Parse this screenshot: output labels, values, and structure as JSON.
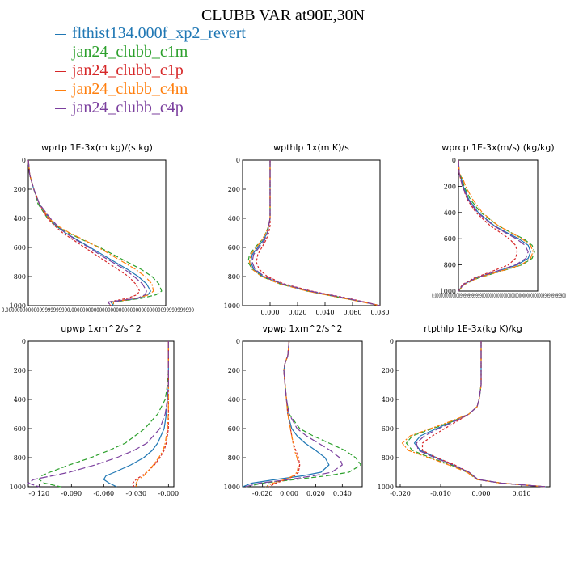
{
  "title": "CLUBB VAR at90E,30N",
  "legend": [
    {
      "name": "flthist134.000f_xp2_revert",
      "color": "#1f77b4",
      "dash": ""
    },
    {
      "name": "jan24_clubb_c1m",
      "color": "#2ca02c",
      "dash": "6,3"
    },
    {
      "name": "jan24_clubb_c1p",
      "color": "#d62728",
      "dash": "3,2"
    },
    {
      "name": "jan24_clubb_c4m",
      "color": "#ff7f0e",
      "dash": "7,2,2,2"
    },
    {
      "name": "jan24_clubb_c4p",
      "color": "#7b3f9e",
      "dash": "9,3"
    }
  ],
  "chart_data": [
    {
      "type": "line",
      "title": "wprtp  1E-3x(m kg)/(s kg)",
      "xlim": [
        0,
        1
      ],
      "ylim": [
        0,
        1000
      ],
      "y_reversed": true,
      "yticks": [
        0,
        200,
        400,
        600,
        800,
        1000
      ],
      "xticks": [],
      "xtick_text": "0.00000000000099999999990.00000000000000000000000000000000099999999990",
      "y": [
        0,
        100,
        200,
        300,
        400,
        450,
        500,
        550,
        600,
        650,
        700,
        750,
        800,
        850,
        900,
        925,
        950,
        975,
        1000
      ],
      "series": [
        {
          "x": [
            0,
            0.01,
            0.04,
            0.08,
            0.15,
            0.2,
            0.27,
            0.36,
            0.45,
            0.54,
            0.63,
            0.72,
            0.8,
            0.86,
            0.89,
            0.87,
            0.8,
            0.6,
            0.62
          ]
        },
        {
          "x": [
            0,
            0.01,
            0.04,
            0.07,
            0.14,
            0.2,
            0.29,
            0.4,
            0.52,
            0.62,
            0.72,
            0.82,
            0.9,
            0.95,
            0.97,
            0.93,
            0.82,
            0.62,
            0.62
          ]
        },
        {
          "x": [
            0,
            0.01,
            0.04,
            0.08,
            0.14,
            0.19,
            0.25,
            0.33,
            0.41,
            0.49,
            0.57,
            0.65,
            0.73,
            0.78,
            0.81,
            0.79,
            0.72,
            0.58,
            0.6
          ]
        },
        {
          "x": [
            0,
            0.01,
            0.04,
            0.08,
            0.15,
            0.21,
            0.3,
            0.41,
            0.51,
            0.6,
            0.69,
            0.78,
            0.85,
            0.9,
            0.91,
            0.88,
            0.78,
            0.62,
            0.62
          ]
        },
        {
          "x": [
            0,
            0.01,
            0.04,
            0.08,
            0.16,
            0.21,
            0.27,
            0.35,
            0.44,
            0.52,
            0.61,
            0.7,
            0.77,
            0.83,
            0.86,
            0.85,
            0.79,
            0.58,
            0.6
          ]
        }
      ]
    },
    {
      "type": "line",
      "title": "wpthlp  1x(m K)/s",
      "xlim": [
        -0.02,
        0.08
      ],
      "ylim": [
        0,
        1000
      ],
      "y_reversed": true,
      "yticks": [
        0,
        200,
        400,
        600,
        800,
        1000
      ],
      "xticks": [
        0.0,
        0.02,
        0.04,
        0.06,
        0.08
      ],
      "xticklabels": [
        "0.000",
        "0.020",
        "0.040",
        "0.060",
        "0.080"
      ],
      "y": [
        0,
        100,
        200,
        300,
        400,
        450,
        500,
        550,
        600,
        650,
        700,
        750,
        800,
        850,
        900,
        950,
        975,
        1000
      ],
      "series": [
        {
          "x": [
            0,
            0,
            0,
            0,
            0,
            -0.001,
            -0.002,
            -0.005,
            -0.009,
            -0.013,
            -0.014,
            -0.012,
            -0.005,
            0.008,
            0.028,
            0.055,
            0.068,
            0.08
          ]
        },
        {
          "x": [
            0,
            0,
            0,
            0,
            0,
            -0.001,
            -0.003,
            -0.006,
            -0.011,
            -0.015,
            -0.016,
            -0.013,
            -0.006,
            0.007,
            0.027,
            0.054,
            0.068,
            0.08
          ]
        },
        {
          "x": [
            0,
            0,
            0,
            0,
            0,
            0,
            -0.001,
            -0.003,
            -0.006,
            -0.009,
            -0.01,
            -0.008,
            -0.002,
            0.01,
            0.03,
            0.057,
            0.069,
            0.08
          ]
        },
        {
          "x": [
            0,
            0,
            0,
            0,
            0,
            -0.001,
            -0.003,
            -0.006,
            -0.01,
            -0.014,
            -0.015,
            -0.013,
            -0.006,
            0.007,
            0.027,
            0.054,
            0.067,
            0.08
          ]
        },
        {
          "x": [
            0,
            0,
            0,
            0,
            0,
            -0.001,
            -0.002,
            -0.004,
            -0.008,
            -0.012,
            -0.013,
            -0.011,
            -0.004,
            0.009,
            0.029,
            0.056,
            0.068,
            0.08
          ]
        }
      ]
    },
    {
      "type": "line",
      "title": "wprcp  1E-3x(m/s) (kg/kg)",
      "xlim": [
        0,
        1
      ],
      "ylim": [
        0,
        1000
      ],
      "y_reversed": true,
      "yticks": [
        0,
        200,
        400,
        600,
        800,
        1000
      ],
      "xticks": [],
      "xtick_text": "0.0000000000000999999999990000000000000000000000000000000999999999900",
      "y": [
        0,
        100,
        150,
        200,
        300,
        400,
        500,
        550,
        600,
        650,
        700,
        750,
        800,
        850,
        900,
        950,
        1000
      ],
      "series": [
        {
          "x": [
            0,
            0.01,
            0.04,
            0.06,
            0.13,
            0.25,
            0.45,
            0.6,
            0.76,
            0.88,
            0.91,
            0.88,
            0.74,
            0.48,
            0.22,
            0.06,
            0
          ]
        },
        {
          "x": [
            0,
            0.01,
            0.05,
            0.07,
            0.15,
            0.28,
            0.5,
            0.65,
            0.82,
            0.93,
            0.96,
            0.93,
            0.8,
            0.53,
            0.25,
            0.07,
            0
          ]
        },
        {
          "x": [
            0,
            0.01,
            0.03,
            0.05,
            0.11,
            0.22,
            0.4,
            0.52,
            0.64,
            0.72,
            0.74,
            0.72,
            0.63,
            0.42,
            0.2,
            0.05,
            0
          ]
        },
        {
          "x": [
            0,
            0.01,
            0.06,
            0.09,
            0.18,
            0.3,
            0.5,
            0.65,
            0.8,
            0.91,
            0.94,
            0.91,
            0.79,
            0.52,
            0.24,
            0.07,
            0
          ]
        },
        {
          "x": [
            0,
            0.01,
            0.03,
            0.05,
            0.12,
            0.24,
            0.44,
            0.58,
            0.73,
            0.84,
            0.88,
            0.85,
            0.72,
            0.47,
            0.22,
            0.06,
            0
          ]
        }
      ]
    },
    {
      "type": "line",
      "title": "upwp  1xm^2/s^2",
      "xlim": [
        -0.13,
        0.005
      ],
      "ylim": [
        0,
        1000
      ],
      "y_reversed": true,
      "yticks": [
        0,
        200,
        400,
        600,
        800,
        1000
      ],
      "xticks": [
        -0.12,
        -0.09,
        -0.06,
        -0.03,
        0.0
      ],
      "xticklabels": [
        "-0.120",
        "-0.090",
        "-0.060",
        "-0.030",
        "-0.000"
      ],
      "y": [
        0,
        200,
        300,
        400,
        500,
        600,
        700,
        750,
        800,
        850,
        900,
        925,
        950,
        975,
        1000
      ],
      "series": [
        {
          "x": [
            0,
            0,
            0,
            -0.001,
            -0.002,
            -0.004,
            -0.01,
            -0.015,
            -0.023,
            -0.035,
            -0.05,
            -0.058,
            -0.06,
            -0.055,
            -0.048
          ]
        },
        {
          "x": [
            0,
            0,
            -0.001,
            -0.003,
            -0.01,
            -0.022,
            -0.04,
            -0.055,
            -0.072,
            -0.092,
            -0.11,
            -0.118,
            -0.12,
            -0.115,
            -0.1
          ]
        },
        {
          "x": [
            0,
            0,
            0,
            0,
            0,
            0,
            -0.002,
            -0.004,
            -0.008,
            -0.013,
            -0.02,
            -0.025,
            -0.03,
            -0.033,
            -0.032
          ]
        },
        {
          "x": [
            0,
            0,
            0,
            0,
            0,
            -0.001,
            -0.003,
            -0.005,
            -0.009,
            -0.014,
            -0.02,
            -0.023,
            -0.028,
            -0.03,
            -0.03
          ]
        },
        {
          "x": [
            0,
            0,
            0,
            -0.001,
            -0.003,
            -0.008,
            -0.02,
            -0.032,
            -0.048,
            -0.068,
            -0.092,
            -0.108,
            -0.125,
            -0.13,
            -0.12
          ]
        }
      ]
    },
    {
      "type": "line",
      "title": "vpwp  1xm^2/s^2",
      "xlim": [
        -0.035,
        0.055
      ],
      "ylim": [
        0,
        1000
      ],
      "y_reversed": true,
      "yticks": [
        0,
        200,
        400,
        600,
        800,
        1000
      ],
      "xticks": [
        -0.02,
        0.0,
        0.02,
        0.04
      ],
      "xticklabels": [
        "-0.020",
        "0.000",
        "0.020",
        "0.040"
      ],
      "y": [
        0,
        100,
        150,
        200,
        300,
        400,
        500,
        600,
        650,
        700,
        750,
        800,
        850,
        900,
        925,
        950,
        975,
        1000
      ],
      "series": [
        {
          "x": [
            0,
            -0.001,
            -0.003,
            -0.004,
            -0.003,
            -0.002,
            -0.001,
            0.002,
            0.006,
            0.012,
            0.02,
            0.027,
            0.03,
            0.024,
            0.01,
            -0.01,
            -0.028,
            -0.035
          ]
        },
        {
          "x": [
            0,
            -0.001,
            -0.003,
            -0.004,
            -0.003,
            -0.002,
            0,
            0.008,
            0.018,
            0.03,
            0.042,
            0.05,
            0.054,
            0.045,
            0.028,
            0.005,
            -0.02,
            -0.032
          ]
        },
        {
          "x": [
            0,
            -0.001,
            -0.003,
            -0.004,
            -0.003,
            -0.002,
            -0.001,
            0.001,
            0.002,
            0.003,
            0.005,
            0.007,
            0.008,
            0.007,
            0.004,
            -0.002,
            -0.01,
            -0.015
          ]
        },
        {
          "x": [
            0,
            -0.001,
            -0.003,
            -0.004,
            -0.003,
            -0.002,
            -0.001,
            0.001,
            0.002,
            0.003,
            0.004,
            0.006,
            0.007,
            0.006,
            0.003,
            -0.003,
            -0.012,
            -0.018
          ]
        },
        {
          "x": [
            0,
            -0.001,
            -0.003,
            -0.004,
            -0.003,
            -0.002,
            0,
            0.006,
            0.013,
            0.022,
            0.031,
            0.038,
            0.04,
            0.032,
            0.018,
            0,
            -0.022,
            -0.033
          ]
        }
      ]
    },
    {
      "type": "line",
      "title": "rtpthlp  1E-3x(kg K)/kg",
      "xlim": [
        -0.021,
        0.017
      ],
      "ylim": [
        0,
        1000
      ],
      "y_reversed": true,
      "yticks": [
        0,
        200,
        400,
        600,
        800,
        1000
      ],
      "xticks": [
        -0.02,
        -0.01,
        0.0,
        0.01
      ],
      "xticklabels": [
        "-0.020",
        "-0.010",
        "0.000",
        "0.010"
      ],
      "y": [
        0,
        200,
        300,
        400,
        450,
        500,
        550,
        600,
        650,
        700,
        750,
        800,
        850,
        900,
        950,
        975,
        1000
      ],
      "series": [
        {
          "x": [
            0,
            0,
            0,
            -0.0005,
            -0.001,
            -0.003,
            -0.007,
            -0.011,
            -0.015,
            -0.0165,
            -0.015,
            -0.011,
            -0.007,
            -0.003,
            -0.0008,
            0.005,
            0.016
          ]
        },
        {
          "x": [
            0,
            0,
            0,
            -0.0005,
            -0.001,
            -0.003,
            -0.007,
            -0.012,
            -0.017,
            -0.0185,
            -0.017,
            -0.0125,
            -0.0075,
            -0.0035,
            -0.001,
            0.005,
            0.016
          ]
        },
        {
          "x": [
            0,
            0,
            0,
            -0.0005,
            -0.001,
            -0.003,
            -0.006,
            -0.009,
            -0.012,
            -0.0145,
            -0.0145,
            -0.011,
            -0.0065,
            -0.003,
            -0.0008,
            0.005,
            0.016
          ]
        },
        {
          "x": [
            0,
            0,
            0,
            -0.0005,
            -0.001,
            -0.003,
            -0.0075,
            -0.0125,
            -0.0175,
            -0.0195,
            -0.018,
            -0.013,
            -0.008,
            -0.0035,
            -0.001,
            0.005,
            0.016
          ]
        },
        {
          "x": [
            0,
            0,
            0,
            -0.0005,
            -0.001,
            -0.003,
            -0.0065,
            -0.0105,
            -0.014,
            -0.016,
            -0.0155,
            -0.0115,
            -0.007,
            -0.003,
            -0.0008,
            0.005,
            0.016
          ]
        }
      ]
    }
  ]
}
